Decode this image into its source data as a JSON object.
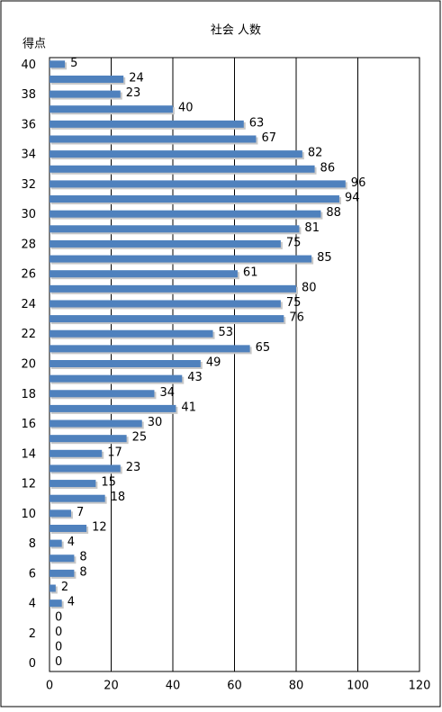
{
  "chart_data": {
    "type": "hbar",
    "title": "社会 人数",
    "y_label": "得点",
    "categories": [
      "40",
      null,
      "38",
      null,
      "36",
      null,
      "34",
      null,
      "32",
      null,
      "30",
      null,
      "28",
      null,
      "26",
      null,
      "24",
      null,
      "22",
      null,
      "20",
      null,
      "18",
      null,
      "16",
      null,
      "14",
      null,
      "12",
      null,
      "10",
      null,
      "8",
      null,
      "6",
      null,
      "4",
      null,
      "2",
      null,
      "0"
    ],
    "values": [
      5,
      24,
      23,
      40,
      63,
      67,
      82,
      86,
      96,
      94,
      88,
      81,
      75,
      85,
      61,
      80,
      75,
      76,
      53,
      65,
      49,
      43,
      34,
      41,
      30,
      25,
      17,
      23,
      15,
      18,
      7,
      12,
      4,
      8,
      8,
      2,
      4,
      0,
      0,
      0,
      0
    ],
    "color": "#4f81bd",
    "xlim": [
      0,
      120
    ],
    "xticks": [
      0,
      20,
      40,
      60,
      80,
      100,
      120
    ],
    "grid": true
  }
}
